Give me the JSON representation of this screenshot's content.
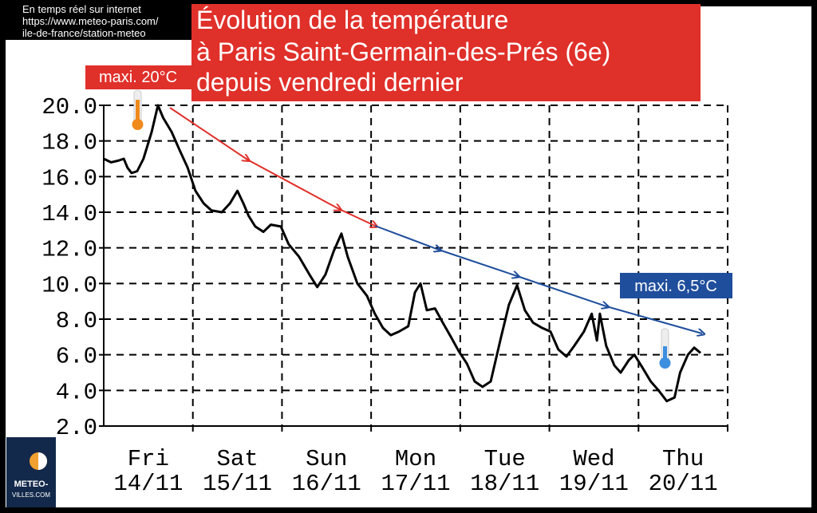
{
  "header": {
    "lines": [
      "En temps réel sur internet",
      "https://www.meteo-paris.com/",
      "ile-de-france/station-meteo"
    ]
  },
  "logo": {
    "lines": [
      "METEO-",
      "VILLES.COM"
    ]
  },
  "chart_data": {
    "type": "line",
    "title": [
      "Évolution de la température",
      "à Paris Saint-Germain-des-Prés (6e)",
      "depuis vendredi dernier"
    ],
    "annotations": [
      {
        "text": "maxi. 20°C",
        "color": "#e0302a"
      },
      {
        "text": "maxi. 6,5°C",
        "color": "#1f4e9c"
      }
    ],
    "x": [
      0,
      2,
      4,
      5.4,
      6.4,
      7.5,
      9,
      10.7,
      12.9,
      14.6,
      16,
      18.3,
      20.4,
      22.6,
      24.7,
      26.9,
      29,
      31.8,
      34,
      36,
      37.6,
      39,
      40.8,
      43,
      45,
      47.7,
      49.8,
      52.6,
      55.4,
      57.5,
      59.7,
      61.9,
      64,
      65.7,
      68.3,
      70.9,
      73,
      75.2,
      77.3,
      79.5,
      82,
      83.8,
      85.3,
      87,
      89.2,
      91.3,
      93.5,
      95.6,
      97.8,
      99.9,
      102,
      104.2,
      107,
      109.1,
      111.3,
      113.4,
      115.6,
      118.1,
      120.3,
      122.4,
      124.6,
      126.7,
      129.3,
      131.4,
      132.8,
      133.6,
      135.3,
      137.5,
      139.2,
      141.4,
      142.9,
      145,
      147.3,
      149.4,
      151.6,
      153.7,
      155.2,
      157.3,
      159,
      160.7
    ],
    "series": [
      {
        "color": "#000000",
        "values": [
          17.0,
          16.8,
          16.9,
          17.0,
          16.5,
          16.2,
          16.3,
          17.0,
          18.5,
          20.0,
          19.3,
          18.5,
          17.5,
          16.5,
          15.2,
          14.5,
          14.1,
          14.0,
          14.5,
          15.2,
          14.5,
          13.8,
          13.2,
          12.9,
          13.3,
          13.2,
          12.2,
          11.5,
          10.5,
          9.8,
          10.5,
          11.8,
          12.8,
          11.5,
          10.0,
          9.3,
          8.3,
          7.5,
          7.1,
          7.3,
          7.6,
          9.5,
          10.0,
          8.5,
          8.6,
          7.8,
          7.0,
          6.2,
          5.5,
          4.5,
          4.2,
          4.5,
          7.0,
          8.8,
          9.9,
          8.5,
          7.8,
          7.5,
          7.3,
          6.3,
          5.9,
          6.5,
          7.3,
          8.3,
          6.8,
          8.3,
          6.5,
          5.4,
          5.0,
          5.7,
          6.0,
          5.3,
          4.5,
          4.0,
          3.4,
          3.6,
          5.0,
          6.0,
          6.4,
          6.1
        ]
      }
    ],
    "xlim": [
      0,
      168
    ],
    "xticks": [
      {
        "value": 12,
        "label": "Fri 14/11"
      },
      {
        "value": 36,
        "label": "Sat 15/11"
      },
      {
        "value": 60,
        "label": "Sun 16/11"
      },
      {
        "value": 84,
        "label": "Mon 17/11"
      },
      {
        "value": 108,
        "label": "Tue 18/11"
      },
      {
        "value": 132,
        "label": "Wed 19/11"
      },
      {
        "value": 156,
        "label": "Thu 20/11"
      }
    ],
    "xgrid": [
      24,
      48,
      72,
      96,
      120,
      144,
      168
    ],
    "ylim": [
      2,
      20
    ],
    "yticks": [
      {
        "value": 2,
        "label": "2.0"
      },
      {
        "value": 4,
        "label": "4.0"
      },
      {
        "value": 6,
        "label": "6.0"
      },
      {
        "value": 8,
        "label": "8.0"
      },
      {
        "value": 10,
        "label": "10.0"
      },
      {
        "value": 12,
        "label": "12.0"
      },
      {
        "value": 14,
        "label": "14.0"
      },
      {
        "value": 16,
        "label": "16.0"
      },
      {
        "value": 18,
        "label": "18.0"
      },
      {
        "value": 20,
        "label": "20.0"
      }
    ],
    "grid": true
  }
}
